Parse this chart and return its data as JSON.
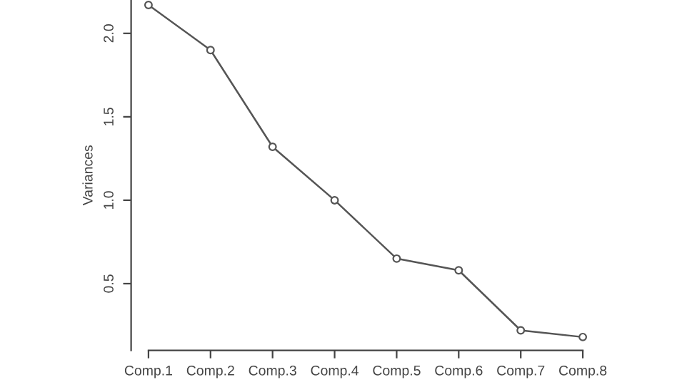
{
  "chart_data": {
    "type": "line",
    "ylabel": "Variances",
    "categories": [
      "Comp.1",
      "Comp.2",
      "Comp.3",
      "Comp.4",
      "Comp.5",
      "Comp.6",
      "Comp.7",
      "Comp.8"
    ],
    "series": [
      {
        "color": "#555555",
        "values": [
          2.17,
          1.9,
          1.32,
          1.0,
          0.65,
          0.58,
          0.22,
          0.18
        ]
      }
    ],
    "ylim": [
      0.1,
      2.2
    ],
    "yticks": [
      0.5,
      {
        "value": 1,
        "label": "1.0"
      },
      1.5,
      {
        "value": 2,
        "label": "2.0"
      }
    ],
    "marker": "circle",
    "line_style": "solid",
    "grid": false,
    "legend": false
  }
}
